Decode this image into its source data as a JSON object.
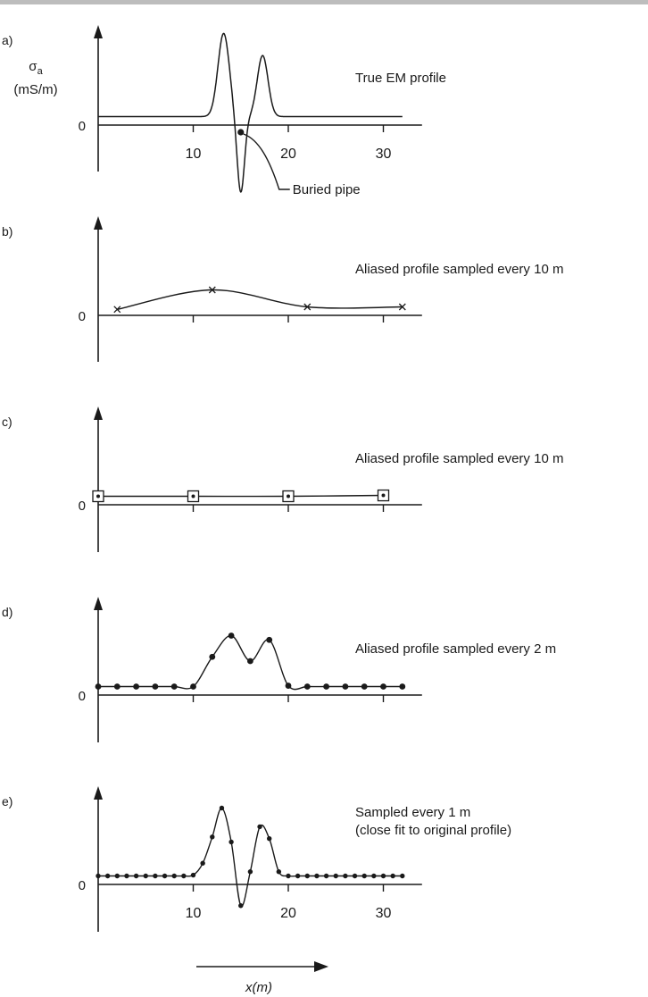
{
  "chart_data": [
    {
      "type": "line",
      "panel_label": "a)",
      "annotation": "True EM profile",
      "ylabel": "σ",
      "ylabel_subscript": "a",
      "yunits": "(mS/m)",
      "y_zero_label": "0",
      "xticks": [
        10,
        20,
        30
      ],
      "xtick_labels": [
        "10",
        "20",
        "30"
      ],
      "xlim": [
        0,
        32
      ],
      "ylim": [
        -5,
        10
      ],
      "line": {
        "baseline": 1,
        "x_start": 0,
        "x_end": 32
      },
      "pipe": {
        "x": 15,
        "y": 0,
        "label": "Buried pipe"
      },
      "markers": []
    },
    {
      "type": "line",
      "panel_label": "b)",
      "annotation": "Aliased profile sampled every 10 m",
      "y_zero_label": "0",
      "xticks": [
        10,
        20,
        30
      ],
      "xtick_labels": [],
      "xlim": [
        0,
        32
      ],
      "ylim": [
        -5,
        10
      ],
      "marker_style": "x",
      "samples": [
        {
          "x": 2,
          "y": 0.7
        },
        {
          "x": 12,
          "y": 3.0
        },
        {
          "x": 22,
          "y": 1.0
        },
        {
          "x": 32,
          "y": 1.0
        }
      ]
    },
    {
      "type": "line",
      "panel_label": "c)",
      "annotation": "Aliased profile sampled every 10 m",
      "y_zero_label": "0",
      "xticks": [
        10,
        20,
        30
      ],
      "xtick_labels": [],
      "xlim": [
        0,
        32
      ],
      "ylim": [
        -5,
        10
      ],
      "marker_style": "square",
      "samples": [
        {
          "x": 0,
          "y": 1.0
        },
        {
          "x": 10,
          "y": 1.0
        },
        {
          "x": 20,
          "y": 1.0
        },
        {
          "x": 30,
          "y": 1.1
        }
      ]
    },
    {
      "type": "line",
      "panel_label": "d)",
      "annotation": "Aliased profile sampled every 2 m",
      "y_zero_label": "0",
      "xticks": [
        10,
        20,
        30
      ],
      "xtick_labels": [],
      "xlim": [
        0,
        32
      ],
      "ylim": [
        -5,
        10
      ],
      "marker_style": "dot",
      "samples": [
        {
          "x": 0,
          "y": 1.0
        },
        {
          "x": 2,
          "y": 1.0
        },
        {
          "x": 4,
          "y": 1.0
        },
        {
          "x": 6,
          "y": 1.0
        },
        {
          "x": 8,
          "y": 1.0
        },
        {
          "x": 10,
          "y": 1.0
        },
        {
          "x": 12,
          "y": 4.5
        },
        {
          "x": 14,
          "y": 7.0
        },
        {
          "x": 16,
          "y": 4.0
        },
        {
          "x": 18,
          "y": 6.5
        },
        {
          "x": 20,
          "y": 1.1
        },
        {
          "x": 22,
          "y": 1.0
        },
        {
          "x": 24,
          "y": 1.0
        },
        {
          "x": 26,
          "y": 1.0
        },
        {
          "x": 28,
          "y": 1.0
        },
        {
          "x": 30,
          "y": 1.0
        },
        {
          "x": 32,
          "y": 1.0
        }
      ]
    },
    {
      "type": "line",
      "panel_label": "e)",
      "annotation": "Sampled every 1 m",
      "annotation_line2": "(close fit to original profile)",
      "y_zero_label": "0",
      "xticks": [
        10,
        20,
        30
      ],
      "xtick_labels": [
        "10",
        "20",
        "30"
      ],
      "xlim": [
        0,
        32
      ],
      "ylim": [
        -5,
        10
      ],
      "marker_style": "dot",
      "samples": [
        {
          "x": 0,
          "y": 1.0
        },
        {
          "x": 1,
          "y": 1.0
        },
        {
          "x": 2,
          "y": 1.0
        },
        {
          "x": 3,
          "y": 1.0
        },
        {
          "x": 4,
          "y": 1.0
        },
        {
          "x": 5,
          "y": 1.0
        },
        {
          "x": 6,
          "y": 1.0
        },
        {
          "x": 7,
          "y": 1.0
        },
        {
          "x": 8,
          "y": 1.0
        },
        {
          "x": 9,
          "y": 1.0
        },
        {
          "x": 10,
          "y": 1.1
        },
        {
          "x": 11,
          "y": 2.5
        },
        {
          "x": 12,
          "y": 5.6
        },
        {
          "x": 13,
          "y": 9.0
        },
        {
          "x": 14,
          "y": 5.0
        },
        {
          "x": 15,
          "y": -2.5
        },
        {
          "x": 16,
          "y": 1.5
        },
        {
          "x": 17,
          "y": 6.8
        },
        {
          "x": 18,
          "y": 5.4
        },
        {
          "x": 19,
          "y": 1.5
        },
        {
          "x": 20,
          "y": 1.0
        },
        {
          "x": 21,
          "y": 1.0
        },
        {
          "x": 22,
          "y": 1.0
        },
        {
          "x": 23,
          "y": 1.0
        },
        {
          "x": 24,
          "y": 1.0
        },
        {
          "x": 25,
          "y": 1.0
        },
        {
          "x": 26,
          "y": 1.0
        },
        {
          "x": 27,
          "y": 1.0
        },
        {
          "x": 28,
          "y": 1.0
        },
        {
          "x": 29,
          "y": 1.0
        },
        {
          "x": 30,
          "y": 1.0
        },
        {
          "x": 31,
          "y": 1.0
        },
        {
          "x": 32,
          "y": 1.0
        }
      ]
    }
  ],
  "x_axis_caption": "x(m)"
}
